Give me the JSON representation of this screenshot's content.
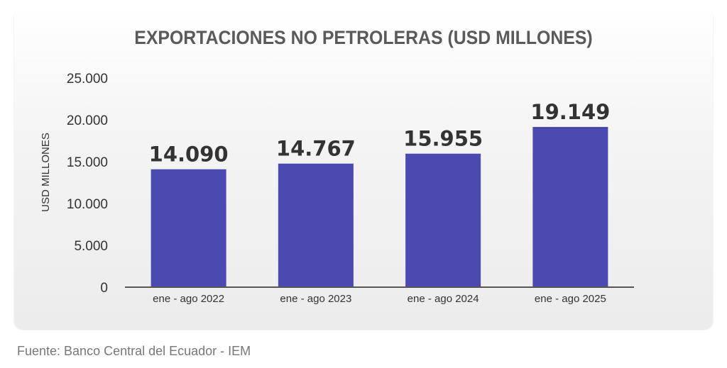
{
  "chart_data": {
    "type": "bar",
    "title": "EXPORTACIONES NO PETROLERAS (USD MILLONES)",
    "xlabel": "",
    "ylabel": "USD MILLONES",
    "categories": [
      "ene - ago 2022",
      "ene - ago 2023",
      "ene - ago 2024",
      "ene - ago 2025"
    ],
    "values": [
      14090,
      14767,
      15955,
      19149
    ],
    "data_labels": [
      "14.090",
      "14.767",
      "15.955",
      "19.149"
    ],
    "ylim": [
      0,
      25000
    ],
    "yticks": [
      0,
      5000,
      10000,
      15000,
      20000,
      25000
    ],
    "ytick_labels": [
      "0",
      "5.000",
      "10.000",
      "15.000",
      "20.000",
      "25.000"
    ],
    "grid": false,
    "bar_color": "#4a4ab0"
  },
  "source": "Fuente: Banco Central del Ecuador - IEM"
}
